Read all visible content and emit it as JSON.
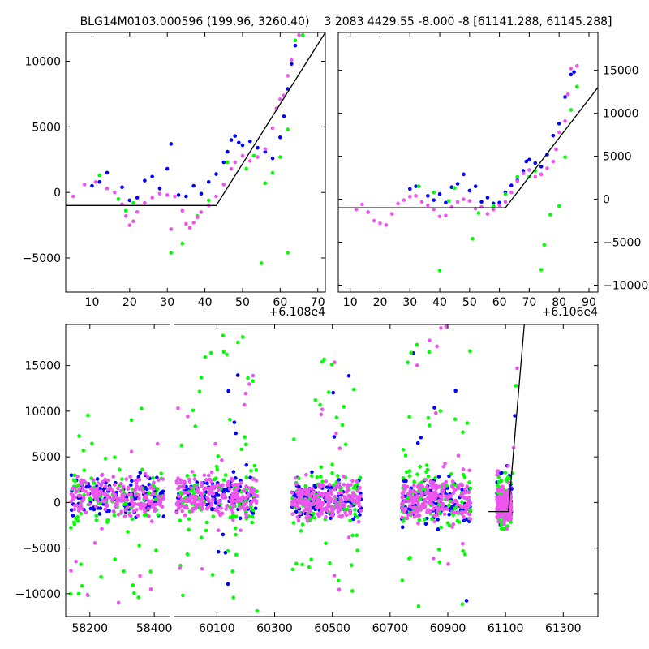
{
  "colors": {
    "blue": "#0000ff",
    "green": "#00ff00",
    "pink": "#ee55ee",
    "fit_line": "#000000"
  },
  "chart_data": [
    {
      "id": "top-left",
      "type": "scatter",
      "title": "BLG14M0103.000596 (199.96, 3260.40)",
      "x_offset_label": "+6.108e4",
      "xlim": [
        3,
        72
      ],
      "ylim": [
        -7600,
        12200
      ],
      "xticks": [
        10,
        20,
        30,
        40,
        50,
        60,
        70
      ],
      "yticks": [
        -5000,
        0,
        5000,
        10000
      ],
      "ytick_labels": [
        "−5000",
        "0",
        "5000",
        "10000"
      ],
      "y_axis_side": "left",
      "fit_line": {
        "x": [
          3,
          43,
          72
        ],
        "y": [
          -1000,
          -1000,
          12200
        ]
      },
      "series": [
        {
          "name": "blue",
          "points": [
            [
              10,
              500
            ],
            [
              12,
              800
            ],
            [
              14,
              1500
            ],
            [
              18,
              400
            ],
            [
              20,
              -600
            ],
            [
              22,
              -400
            ],
            [
              24,
              900
            ],
            [
              26,
              1200
            ],
            [
              28,
              300
            ],
            [
              30,
              1800
            ],
            [
              31,
              3700
            ],
            [
              33,
              -200
            ],
            [
              35,
              -300
            ],
            [
              37,
              500
            ],
            [
              39,
              -100
            ],
            [
              41,
              800
            ],
            [
              43,
              1400
            ],
            [
              45,
              2300
            ],
            [
              46,
              3100
            ],
            [
              47,
              4000
            ],
            [
              48,
              4300
            ],
            [
              49,
              3800
            ],
            [
              50,
              3600
            ],
            [
              52,
              3900
            ],
            [
              54,
              3400
            ],
            [
              56,
              3100
            ],
            [
              58,
              2600
            ],
            [
              60,
              4200
            ],
            [
              61,
              5800
            ],
            [
              62,
              7900
            ],
            [
              63,
              9800
            ],
            [
              64,
              11200
            ]
          ]
        },
        {
          "name": "green",
          "points": [
            [
              12,
              1300
            ],
            [
              17,
              -500
            ],
            [
              19,
              -1400
            ],
            [
              21,
              -800
            ],
            [
              31,
              -4600
            ],
            [
              34,
              -3900
            ],
            [
              38,
              -1800
            ],
            [
              41,
              -600
            ],
            [
              46,
              2300
            ],
            [
              51,
              1800
            ],
            [
              53,
              2800
            ],
            [
              55,
              -5400
            ],
            [
              56,
              700
            ],
            [
              58,
              1500
            ],
            [
              60,
              2700
            ],
            [
              62,
              4800
            ],
            [
              62,
              -4600
            ],
            [
              64,
              11600
            ],
            [
              66,
              12000
            ]
          ]
        },
        {
          "name": "pink",
          "points": [
            [
              5,
              -300
            ],
            [
              8,
              600
            ],
            [
              11,
              800
            ],
            [
              14,
              300
            ],
            [
              16,
              0
            ],
            [
              18,
              -900
            ],
            [
              19,
              -1800
            ],
            [
              20,
              -2500
            ],
            [
              21,
              -2200
            ],
            [
              22,
              -1500
            ],
            [
              24,
              -800
            ],
            [
              26,
              -400
            ],
            [
              28,
              -100
            ],
            [
              30,
              -200
            ],
            [
              31,
              -2800
            ],
            [
              32,
              -300
            ],
            [
              34,
              -1400
            ],
            [
              35,
              -2400
            ],
            [
              36,
              -2700
            ],
            [
              37,
              -2300
            ],
            [
              38,
              -1900
            ],
            [
              39,
              -1500
            ],
            [
              41,
              -1000
            ],
            [
              43,
              -300
            ],
            [
              45,
              600
            ],
            [
              47,
              1800
            ],
            [
              48,
              2300
            ],
            [
              50,
              2800
            ],
            [
              52,
              2400
            ],
            [
              54,
              2700
            ],
            [
              56,
              3300
            ],
            [
              58,
              4900
            ],
            [
              59,
              6400
            ],
            [
              60,
              7100
            ],
            [
              61,
              7400
            ],
            [
              62,
              8900
            ],
            [
              63,
              10100
            ],
            [
              65,
              12000
            ]
          ]
        }
      ]
    },
    {
      "id": "top-right",
      "type": "scatter",
      "title": "3 2083 4429.55 -8.000 -8 [61141.288, 61145.288]",
      "x_offset_label": "+6.106e4",
      "xlim": [
        6,
        93
      ],
      "ylim": [
        -10800,
        19400
      ],
      "xticks": [
        10,
        20,
        30,
        40,
        50,
        60,
        70,
        80,
        90
      ],
      "yticks": [
        -10000,
        -5000,
        0,
        5000,
        10000,
        15000
      ],
      "ytick_labels": [
        "−10000",
        "−5000",
        "0",
        "5000",
        "10000",
        "15000"
      ],
      "y_axis_side": "right",
      "fit_line": {
        "x": [
          6,
          62,
          93
        ],
        "y": [
          -1000,
          -1000,
          13000
        ]
      },
      "series": [
        {
          "name": "blue",
          "points": [
            [
              30,
              1200
            ],
            [
              32,
              1500
            ],
            [
              36,
              400
            ],
            [
              38,
              -100
            ],
            [
              40,
              600
            ],
            [
              42,
              -400
            ],
            [
              44,
              1400
            ],
            [
              46,
              1800
            ],
            [
              48,
              2900
            ],
            [
              50,
              1000
            ],
            [
              52,
              1500
            ],
            [
              54,
              -300
            ],
            [
              56,
              200
            ],
            [
              58,
              -500
            ],
            [
              60,
              -400
            ],
            [
              62,
              800
            ],
            [
              64,
              1600
            ],
            [
              66,
              2200
            ],
            [
              68,
              3300
            ],
            [
              69,
              4400
            ],
            [
              70,
              4600
            ],
            [
              72,
              4200
            ],
            [
              74,
              3800
            ],
            [
              76,
              5200
            ],
            [
              78,
              7400
            ],
            [
              80,
              8800
            ],
            [
              82,
              11900
            ],
            [
              84,
              14500
            ],
            [
              85,
              14800
            ]
          ]
        },
        {
          "name": "green",
          "points": [
            [
              33,
              1500
            ],
            [
              38,
              800
            ],
            [
              40,
              -8300
            ],
            [
              43,
              -200
            ],
            [
              45,
              1300
            ],
            [
              51,
              -4600
            ],
            [
              53,
              -1600
            ],
            [
              58,
              -800
            ],
            [
              62,
              600
            ],
            [
              66,
              2600
            ],
            [
              70,
              2600
            ],
            [
              72,
              3300
            ],
            [
              74,
              -8200
            ],
            [
              75,
              -5300
            ],
            [
              77,
              -1800
            ],
            [
              80,
              -800
            ],
            [
              82,
              4900
            ],
            [
              84,
              10400
            ],
            [
              86,
              13100
            ]
          ]
        },
        {
          "name": "pink",
          "points": [
            [
              12,
              -1200
            ],
            [
              14,
              -600
            ],
            [
              16,
              -1500
            ],
            [
              18,
              -2500
            ],
            [
              20,
              -2800
            ],
            [
              22,
              -3000
            ],
            [
              24,
              -1700
            ],
            [
              26,
              -500
            ],
            [
              28,
              -100
            ],
            [
              30,
              300
            ],
            [
              32,
              400
            ],
            [
              34,
              -300
            ],
            [
              36,
              -700
            ],
            [
              38,
              -1200
            ],
            [
              40,
              -2000
            ],
            [
              42,
              -1900
            ],
            [
              44,
              -900
            ],
            [
              46,
              -300
            ],
            [
              48,
              0
            ],
            [
              50,
              -200
            ],
            [
              52,
              -1100
            ],
            [
              54,
              -900
            ],
            [
              56,
              -1700
            ],
            [
              58,
              -1200
            ],
            [
              60,
              -700
            ],
            [
              62,
              -300
            ],
            [
              64,
              800
            ],
            [
              66,
              2100
            ],
            [
              68,
              3000
            ],
            [
              70,
              3400
            ],
            [
              72,
              2600
            ],
            [
              74,
              2900
            ],
            [
              76,
              3600
            ],
            [
              78,
              4400
            ],
            [
              79,
              5800
            ],
            [
              80,
              7800
            ],
            [
              82,
              9100
            ],
            [
              83,
              12200
            ],
            [
              84,
              15200
            ],
            [
              86,
              15500
            ]
          ]
        }
      ]
    },
    {
      "id": "bottom",
      "type": "scatter",
      "title": "",
      "ylim": [
        -12500,
        19500
      ],
      "yticks": [
        -10000,
        -5000,
        0,
        5000,
        10000,
        15000
      ],
      "ytick_labels": [
        "−10000",
        "−5000",
        "0",
        "5000",
        "10000",
        "15000"
      ],
      "y_axis_side": "left",
      "panels": [
        {
          "xlim": [
            58125,
            58450
          ],
          "xticks": [
            58200,
            58400
          ]
        },
        {
          "xlim": [
            59950,
            61420
          ],
          "xticks": [
            60100,
            60300,
            60500,
            60700,
            60900,
            61100,
            61300
          ]
        }
      ],
      "fit_line": {
        "x": [
          61040,
          61110,
          61165
        ],
        "y": [
          -1000,
          -1000,
          19500
        ]
      },
      "clusters": [
        {
          "x_range": [
            58140,
            58430
          ],
          "y_center": 600,
          "spread": 1500,
          "outlier_range": [
            -11500,
            11000
          ]
        },
        {
          "x_range": [
            59960,
            60240
          ],
          "y_center": 700,
          "spread": 1500,
          "outlier_range": [
            -12000,
            19000
          ]
        },
        {
          "x_range": [
            60360,
            60600
          ],
          "y_center": 300,
          "spread": 1500,
          "outlier_range": [
            -10000,
            16500
          ]
        },
        {
          "x_range": [
            60740,
            60980
          ],
          "y_center": 300,
          "spread": 1700,
          "outlier_range": [
            -11500,
            19500
          ]
        },
        {
          "x_range": [
            61070,
            61120
          ],
          "y_center": -200,
          "spread": 1200,
          "outlier_range": [
            -3000,
            4500
          ]
        }
      ],
      "rise_points": [
        [
          61121,
          1500
        ],
        [
          61124,
          3200
        ],
        [
          61128,
          6000
        ],
        [
          61132,
          9500
        ],
        [
          61136,
          12800
        ],
        [
          61140,
          14700
        ]
      ]
    }
  ]
}
